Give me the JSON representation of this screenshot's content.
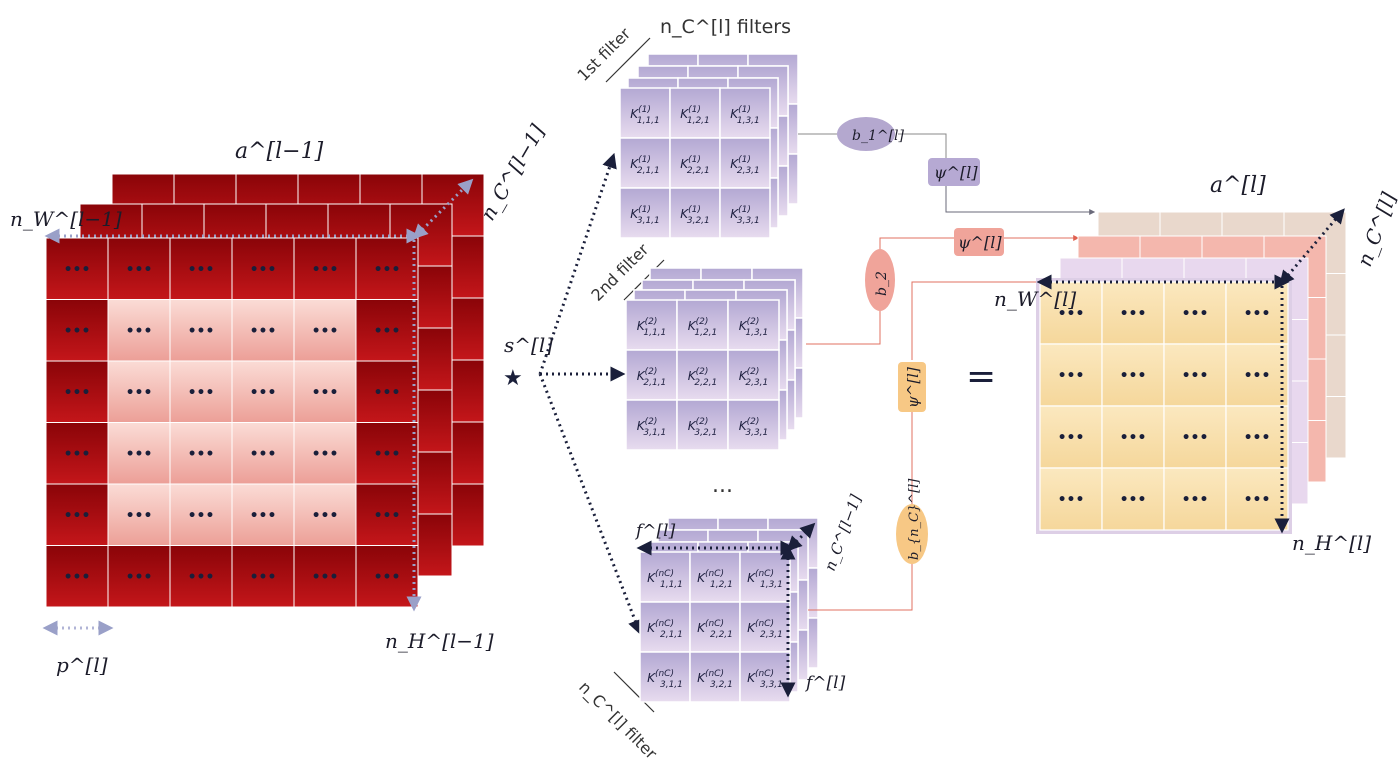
{
  "input": {
    "label": "a^[l−1]",
    "width_label": "n_W^[l−1]",
    "height_label": "n_H^[l−1]",
    "channels_label": "n_C^[l−1]",
    "padding_label": "p^[l]",
    "cell_text": "•••"
  },
  "operator": {
    "label": "s^[l]",
    "symbol": "★"
  },
  "filters": {
    "title": "n_C^[l] filters",
    "first_label": "1st filter",
    "second_label": "2nd filter",
    "last_label": "n_C^[l] filter",
    "ellipsis": "...",
    "size_label_top": "f^[l]",
    "size_label_side": "f^[l]",
    "depth_label": "n_C^[l−1]",
    "filter1_cells": [
      [
        "K(1) 1,1,1",
        "K(1) 1,2,1",
        "K(1) 1,3,1"
      ],
      [
        "K(1) 2,1,1",
        "K(1) 2,2,1",
        "K(1) 2,3,1"
      ],
      [
        "K(1) 3,1,1",
        "K(1) 3,2,1",
        "K(1) 3,3,1"
      ]
    ],
    "filter2_cells": [
      [
        "K(2) 1,1,1",
        "K(2) 1,2,1",
        "K(2) 1,3,1"
      ],
      [
        "K(2) 2,1,1",
        "K(2) 2,2,1",
        "K(2) 2,3,1"
      ],
      [
        "K(2) 3,1,1",
        "K(2) 3,2,1",
        "K(2) 3,3,1"
      ]
    ],
    "filterN_cells": [
      [
        "K(nC) 1,1,1",
        "K(nC) 1,2,1",
        "K(nC) 1,3,1"
      ],
      [
        "K(nC) 2,1,1",
        "K(nC) 2,2,1",
        "K(nC) 2,3,1"
      ],
      [
        "K(nC) 3,1,1",
        "K(nC) 3,2,1",
        "K(nC) 3,3,1"
      ]
    ]
  },
  "bias": {
    "b1": "b_1^[l]",
    "b2": "b_2",
    "bn": "b_{n_C}^[l]"
  },
  "activation": {
    "label": "ψ^[l]"
  },
  "equals": "=",
  "output": {
    "label": "a^[l]",
    "width_label": "n_W^[l]",
    "height_label": "n_H^[l]",
    "channels_label": "n_C^[l]",
    "cell_text": "•••"
  },
  "colors": {
    "input_dark": "#a8070c",
    "input_pad_light": "#f2b5ae",
    "filter_face": "#c7bfdc",
    "filter_header": "#a99ccd",
    "bias_fill": "#b4a8cf",
    "activation_fill": "#b6a9d3",
    "red_activation": "#f0a49a",
    "orange_oval": "#f7c885",
    "output_yellow": "#f7dfaa",
    "arrow_dark": "#1a1f3a",
    "arrow_light": "#a7a7cf"
  }
}
